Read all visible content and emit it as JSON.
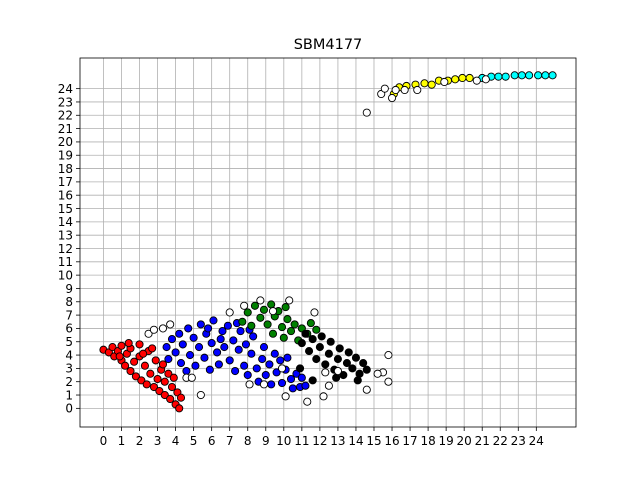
{
  "chart_data": {
    "type": "scatter",
    "title": "SBM4177",
    "xlabel": "",
    "ylabel": "",
    "xlim": [
      -1.3,
      26.2
    ],
    "ylim": [
      -1.4,
      26.3
    ],
    "xticks": [
      0,
      1,
      2,
      3,
      4,
      5,
      6,
      7,
      8,
      9,
      10,
      11,
      12,
      13,
      14,
      15,
      16,
      17,
      18,
      19,
      20,
      21,
      22,
      23,
      24
    ],
    "yticks": [
      0,
      1,
      2,
      3,
      4,
      5,
      6,
      7,
      8,
      9,
      10,
      11,
      12,
      13,
      14,
      15,
      16,
      17,
      18,
      19,
      20,
      21,
      22,
      23,
      24
    ],
    "grid": true,
    "legend": "none",
    "series": [
      {
        "color": "#ff0000",
        "points": [
          [
            0,
            4.4
          ],
          [
            0.3,
            4.2
          ],
          [
            0.5,
            4.6
          ],
          [
            0.6,
            3.9
          ],
          [
            0.8,
            4.3
          ],
          [
            1,
            3.6
          ],
          [
            1,
            4.7
          ],
          [
            1.2,
            3.2
          ],
          [
            1.3,
            4.1
          ],
          [
            1.5,
            2.8
          ],
          [
            1.5,
            4.5
          ],
          [
            1.7,
            3.5
          ],
          [
            1.8,
            2.4
          ],
          [
            2,
            4.8
          ],
          [
            2,
            3.9
          ],
          [
            2.1,
            2.1
          ],
          [
            2.3,
            3.2
          ],
          [
            2.4,
            1.8
          ],
          [
            2.5,
            4.3
          ],
          [
            2.6,
            2.6
          ],
          [
            2.8,
            1.6
          ],
          [
            2.9,
            3.6
          ],
          [
            3,
            2.2
          ],
          [
            3.1,
            1.3
          ],
          [
            3.2,
            2.9
          ],
          [
            3.4,
            1.0
          ],
          [
            3.4,
            2.0
          ],
          [
            3.6,
            2.6
          ],
          [
            3.7,
            0.7
          ],
          [
            3.8,
            1.6
          ],
          [
            3.9,
            2.3
          ],
          [
            4,
            0.3
          ],
          [
            4.1,
            1.2
          ],
          [
            4.2,
            0.0
          ],
          [
            4.3,
            0.8
          ],
          [
            1.4,
            4.9
          ],
          [
            2.7,
            4.5
          ],
          [
            0.9,
            3.9
          ],
          [
            2.2,
            4.1
          ],
          [
            3.3,
            3.3
          ]
        ]
      },
      {
        "color": "#0000ff",
        "points": [
          [
            3.5,
            4.6
          ],
          [
            3.6,
            3.7
          ],
          [
            3.8,
            5.2
          ],
          [
            4,
            4.2
          ],
          [
            4.2,
            5.6
          ],
          [
            4.3,
            3.4
          ],
          [
            4.4,
            4.8
          ],
          [
            4.6,
            2.8
          ],
          [
            4.7,
            6.0
          ],
          [
            4.8,
            4.0
          ],
          [
            5,
            5.3
          ],
          [
            5.1,
            3.2
          ],
          [
            5.3,
            4.6
          ],
          [
            5.4,
            6.3
          ],
          [
            5.6,
            3.8
          ],
          [
            5.7,
            5.6
          ],
          [
            5.9,
            2.9
          ],
          [
            6,
            4.9
          ],
          [
            6.1,
            6.6
          ],
          [
            6.3,
            4.2
          ],
          [
            6.4,
            3.3
          ],
          [
            6.6,
            5.8
          ],
          [
            6.7,
            4.6
          ],
          [
            6.9,
            6.2
          ],
          [
            7,
            3.6
          ],
          [
            7.2,
            5.1
          ],
          [
            7.3,
            2.8
          ],
          [
            7.5,
            4.4
          ],
          [
            7.6,
            5.8
          ],
          [
            7.8,
            3.2
          ],
          [
            7.9,
            4.8
          ],
          [
            8,
            2.5
          ],
          [
            8.2,
            4.1
          ],
          [
            8.3,
            5.4
          ],
          [
            8.5,
            3.0
          ],
          [
            8.6,
            2.0
          ],
          [
            8.8,
            3.7
          ],
          [
            8.9,
            4.6
          ],
          [
            9,
            2.5
          ],
          [
            9.2,
            3.3
          ],
          [
            9.3,
            1.8
          ],
          [
            9.5,
            4.1
          ],
          [
            9.6,
            2.7
          ],
          [
            9.8,
            3.6
          ],
          [
            9.9,
            1.9
          ],
          [
            10.1,
            2.9
          ],
          [
            10.2,
            3.8
          ],
          [
            10.4,
            2.2
          ],
          [
            10.5,
            1.5
          ],
          [
            10.7,
            2.6
          ],
          [
            10.9,
            1.6
          ],
          [
            11,
            2.3
          ],
          [
            11.2,
            1.7
          ],
          [
            8.1,
            5.9
          ],
          [
            7.4,
            6.4
          ],
          [
            6.5,
            5.2
          ],
          [
            5.8,
            6.0
          ]
        ]
      },
      {
        "color": "#008000",
        "points": [
          [
            7.7,
            6.5
          ],
          [
            8,
            7.2
          ],
          [
            8.2,
            6.2
          ],
          [
            8.4,
            7.7
          ],
          [
            8.7,
            6.8
          ],
          [
            8.9,
            7.4
          ],
          [
            9.1,
            6.3
          ],
          [
            9.3,
            7.8
          ],
          [
            9.5,
            6.9
          ],
          [
            9.7,
            7.3
          ],
          [
            9.9,
            6.1
          ],
          [
            10,
            5.3
          ],
          [
            10.2,
            6.7
          ],
          [
            10.4,
            5.8
          ],
          [
            10.6,
            6.3
          ],
          [
            10.8,
            5.1
          ],
          [
            11,
            6.0
          ],
          [
            11.3,
            5.6
          ],
          [
            11.5,
            6.4
          ],
          [
            11.8,
            5.9
          ],
          [
            9.4,
            5.6
          ],
          [
            10.1,
            7.6
          ]
        ]
      },
      {
        "color": "#000000",
        "points": [
          [
            11,
            4.9
          ],
          [
            11.2,
            5.6
          ],
          [
            11.4,
            4.3
          ],
          [
            11.6,
            5.2
          ],
          [
            11.8,
            3.7
          ],
          [
            12,
            4.6
          ],
          [
            12.1,
            5.4
          ],
          [
            12.3,
            3.3
          ],
          [
            12.5,
            4.1
          ],
          [
            12.6,
            5.0
          ],
          [
            12.8,
            2.9
          ],
          [
            13,
            3.7
          ],
          [
            13.1,
            4.5
          ],
          [
            13.3,
            2.5
          ],
          [
            13.5,
            3.4
          ],
          [
            13.6,
            4.2
          ],
          [
            13.8,
            3.0
          ],
          [
            14,
            3.8
          ],
          [
            14.2,
            2.6
          ],
          [
            14.4,
            3.4
          ],
          [
            14.6,
            2.9
          ],
          [
            14.1,
            2.1
          ],
          [
            12.9,
            2.3
          ],
          [
            11.6,
            2.1
          ],
          [
            10.9,
            3.0
          ]
        ]
      },
      {
        "color": "#ffff00",
        "points": [
          [
            16.1,
            23.6
          ],
          [
            16.4,
            24.1
          ],
          [
            16.8,
            24.2
          ],
          [
            17.3,
            24.3
          ],
          [
            17.8,
            24.4
          ],
          [
            18.2,
            24.3
          ],
          [
            18.6,
            24.6
          ],
          [
            19.1,
            24.6
          ],
          [
            19.5,
            24.7
          ],
          [
            19.9,
            24.8
          ],
          [
            20.3,
            24.8
          ]
        ]
      },
      {
        "color": "#00ffff",
        "points": [
          [
            21,
            24.8
          ],
          [
            21.5,
            24.9
          ],
          [
            21.9,
            24.9
          ],
          [
            22.3,
            24.9
          ],
          [
            22.8,
            25.0
          ],
          [
            23.2,
            25.0
          ],
          [
            23.6,
            25.0
          ],
          [
            24.1,
            25.0
          ],
          [
            24.5,
            25.0
          ],
          [
            24.9,
            25.0
          ]
        ]
      },
      {
        "color": "#ffffff",
        "points": [
          [
            3.7,
            6.3
          ],
          [
            2.5,
            5.6
          ],
          [
            2.8,
            5.9
          ],
          [
            3.3,
            6.0
          ],
          [
            4.6,
            2.3
          ],
          [
            4.9,
            2.3
          ],
          [
            5.4,
            1.0
          ],
          [
            7.0,
            7.2
          ],
          [
            7.8,
            7.7
          ],
          [
            8.7,
            8.1
          ],
          [
            10.3,
            8.1
          ],
          [
            9.4,
            7.3
          ],
          [
            11.7,
            7.2
          ],
          [
            8.1,
            1.8
          ],
          [
            10.1,
            0.9
          ],
          [
            11.3,
            0.5
          ],
          [
            12.2,
            0.9
          ],
          [
            12.5,
            1.7
          ],
          [
            14.6,
            1.4
          ],
          [
            15.5,
            2.7
          ],
          [
            15.8,
            2.0
          ],
          [
            15.8,
            4.0
          ],
          [
            15.2,
            2.6
          ],
          [
            13.0,
            2.8
          ],
          [
            12.3,
            2.7
          ],
          [
            8.9,
            1.8
          ],
          [
            9.9,
            3.0
          ],
          [
            14.6,
            22.2
          ],
          [
            15.4,
            23.6
          ],
          [
            15.6,
            24.0
          ],
          [
            16.0,
            23.3
          ],
          [
            16.2,
            23.9
          ],
          [
            16.7,
            23.9
          ],
          [
            17.4,
            23.9
          ],
          [
            18.9,
            24.5
          ],
          [
            20.7,
            24.6
          ],
          [
            21.2,
            24.7
          ]
        ]
      }
    ]
  }
}
